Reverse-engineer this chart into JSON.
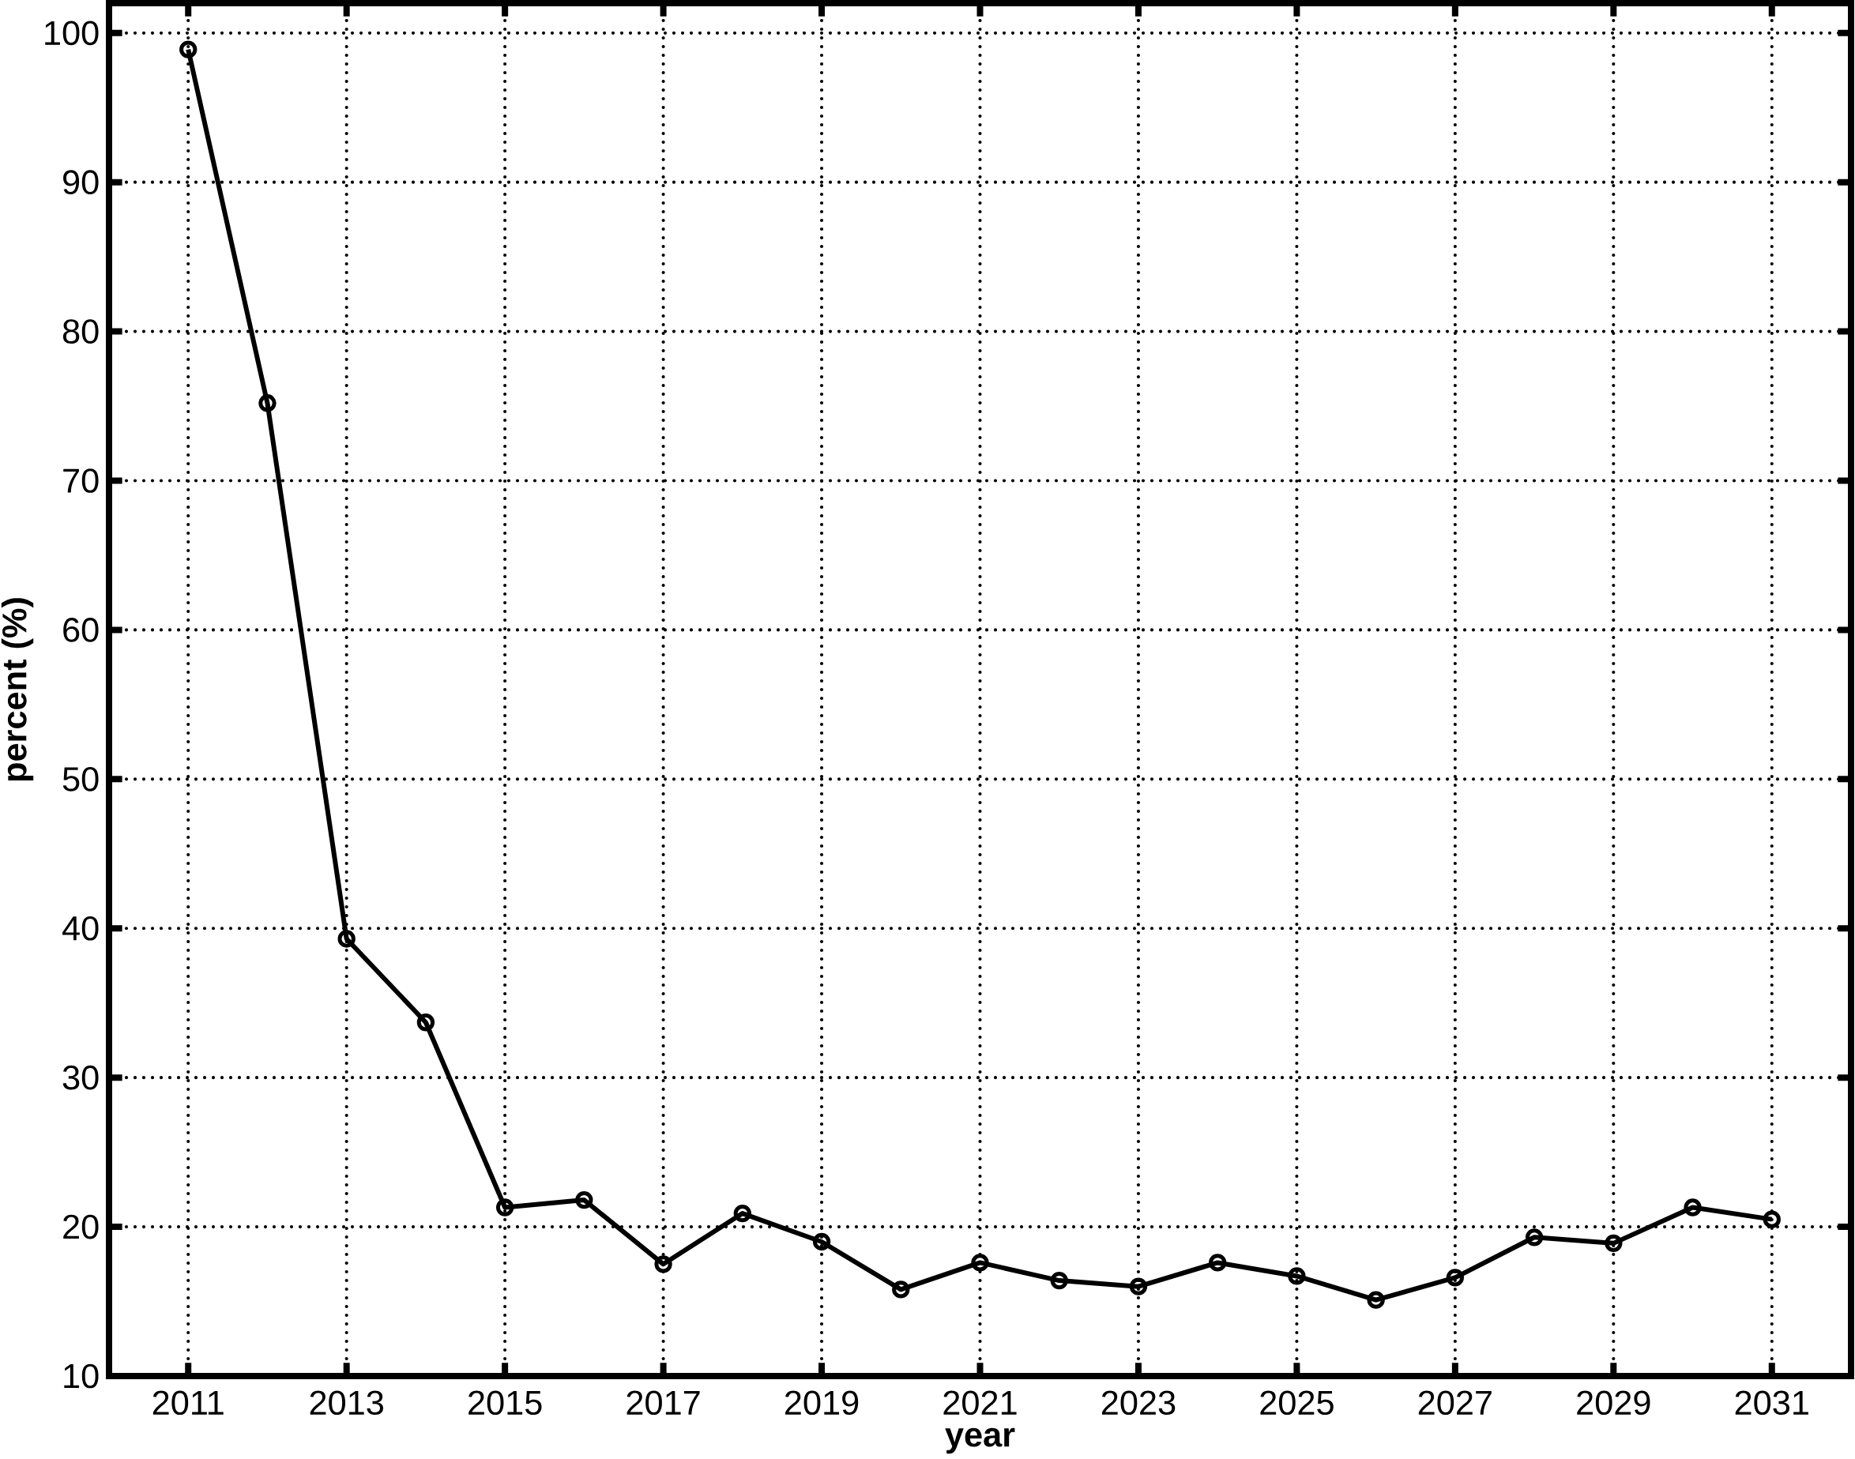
{
  "chart_data": {
    "type": "line",
    "xlabel": "year",
    "ylabel": "percent (%)",
    "x": [
      2011,
      2012,
      2013,
      2014,
      2015,
      2016,
      2017,
      2018,
      2019,
      2020,
      2021,
      2022,
      2023,
      2024,
      2025,
      2026,
      2027,
      2028,
      2029,
      2030,
      2031
    ],
    "values": [
      98.9,
      75.2,
      39.3,
      33.7,
      21.3,
      21.8,
      17.5,
      20.9,
      19.0,
      15.8,
      17.6,
      16.4,
      16.0,
      17.6,
      16.7,
      15.1,
      16.6,
      19.3,
      18.9,
      21.3,
      20.5
    ],
    "color": "#000000",
    "marker": "circle",
    "line_style": "solid",
    "grid": true,
    "xlim": [
      2010,
      2032
    ],
    "ylim": [
      10,
      102
    ],
    "xticks": [
      2011,
      2013,
      2015,
      2017,
      2019,
      2021,
      2023,
      2025,
      2027,
      2029,
      2031
    ],
    "yticks": [
      10,
      20,
      30,
      40,
      50,
      60,
      70,
      80,
      90,
      100
    ]
  }
}
